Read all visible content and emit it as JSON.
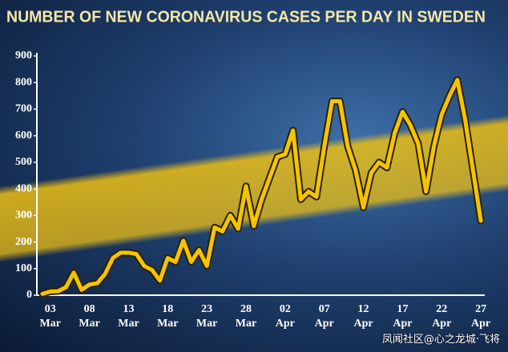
{
  "chart_data": {
    "type": "line",
    "title": "NUMBER OF NEW CORONAVIRUS CASES PER DAY IN SWEDEN",
    "categories": [
      null,
      "03 Mar",
      null,
      null,
      null,
      null,
      "08 Mar",
      null,
      null,
      null,
      null,
      "13 Mar",
      null,
      null,
      null,
      null,
      "18 Mar",
      null,
      null,
      null,
      null,
      "23 Mar",
      null,
      null,
      null,
      null,
      "28 Mar",
      null,
      null,
      null,
      null,
      "02 Apr",
      null,
      null,
      null,
      null,
      "07 Apr",
      null,
      null,
      null,
      null,
      "12 Apr",
      null,
      null,
      null,
      null,
      "17 Apr",
      null,
      null,
      null,
      null,
      "22 Apr",
      null,
      null,
      null,
      null,
      "27 Apr"
    ],
    "values": [
      5,
      14,
      15,
      30,
      85,
      20,
      40,
      45,
      80,
      140,
      160,
      160,
      155,
      110,
      95,
      55,
      140,
      125,
      205,
      125,
      170,
      110,
      255,
      240,
      300,
      250,
      410,
      260,
      360,
      440,
      520,
      530,
      620,
      360,
      390,
      370,
      560,
      730,
      730,
      560,
      470,
      330,
      460,
      500,
      480,
      610,
      690,
      640,
      570,
      390,
      560,
      680,
      750,
      810,
      660,
      470,
      280
    ],
    "color": "#f5c400",
    "ylim": [
      0,
      900
    ],
    "yticks": [
      0,
      100,
      200,
      300,
      400,
      500,
      600,
      700,
      800,
      900
    ],
    "grid": false
  },
  "watermark": "凤闻社区@心之龙城·飞将"
}
